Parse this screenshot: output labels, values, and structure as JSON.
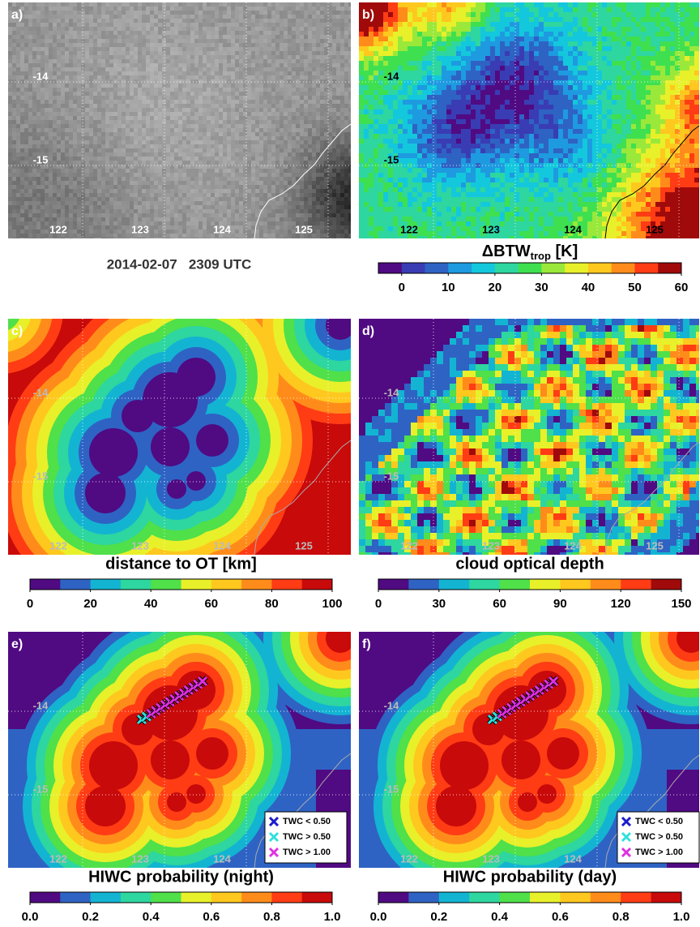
{
  "caption": "2014-02-07   2309 UTC",
  "panels": [
    {
      "label": "a)",
      "lon_labels": [
        122,
        123,
        124,
        125
      ],
      "lat_labels": [
        -14,
        -15
      ]
    },
    {
      "label": "b)",
      "lon_labels": [
        122,
        123,
        124,
        125
      ],
      "lat_labels": [
        -14,
        -15
      ],
      "colorbar": {
        "title": {
          "main": "ΔBTW",
          "sub": "trop",
          "unit": " [K]"
        },
        "lim": [
          -5,
          60
        ],
        "ticks": [
          0,
          10,
          20,
          30,
          40,
          50,
          60
        ],
        "colors": [
          "#500a82",
          "#3a3cb4",
          "#2e63c4",
          "#1e9ae0",
          "#13c8dc",
          "#2ed6a0",
          "#3ee050",
          "#9ae83a",
          "#e8f02a",
          "#ffc81e",
          "#ff8c1a",
          "#ff3c14",
          "#a00a0a"
        ]
      }
    },
    {
      "label": "c)",
      "lon_labels": [
        122,
        123,
        124,
        125
      ],
      "lat_labels": [
        -14,
        -15
      ],
      "colorbar": {
        "title": "distance to OT [km]",
        "lim": [
          0,
          100
        ],
        "ticks": [
          0,
          20,
          40,
          60,
          80,
          100
        ],
        "colors": [
          "#500a82",
          "#2e63c4",
          "#13b4d2",
          "#2ed6a0",
          "#4fe04a",
          "#e8f02a",
          "#ffc81e",
          "#ff8c1a",
          "#ff3c14",
          "#c80a0a"
        ]
      }
    },
    {
      "label": "d)",
      "lon_labels": [
        122,
        123,
        124,
        125
      ],
      "lat_labels": [
        -14,
        -15
      ],
      "colorbar": {
        "title": "cloud optical depth",
        "lim": [
          0,
          150
        ],
        "ticks": [
          0,
          30,
          60,
          90,
          120,
          150
        ],
        "colors": [
          "#500a82",
          "#2e63c4",
          "#13b4d2",
          "#2ed6a0",
          "#4fe04a",
          "#e8f02a",
          "#ffc81e",
          "#ff8c1a",
          "#ff3c14",
          "#a00a0a"
        ]
      }
    },
    {
      "label": "e)",
      "lon_labels": [
        122,
        123,
        124
      ],
      "lat_labels": [
        -14,
        -15
      ],
      "colorbar": {
        "title": "HIWC probability (night)",
        "lim": [
          0,
          1
        ],
        "ticks": [
          {
            "value": 0,
            "label": "0.0"
          },
          {
            "value": 0.2,
            "label": "0.2"
          },
          {
            "value": 0.4,
            "label": "0.4"
          },
          {
            "value": 0.6,
            "label": "0.6"
          },
          {
            "value": 0.8,
            "label": "0.8"
          },
          {
            "value": 1,
            "label": "1.0"
          }
        ],
        "colors": [
          "#500a82",
          "#2e63c4",
          "#13b4d2",
          "#2ed6a0",
          "#4fe04a",
          "#e8f02a",
          "#ffc81e",
          "#ff8c1a",
          "#ff3c14",
          "#c80a0a"
        ]
      },
      "legend": [
        {
          "name": "TWC < 0.50",
          "color": "#1c1ccc"
        },
        {
          "name": "TWC > 0.50",
          "color": "#30e0e0"
        },
        {
          "name": "TWC > 1.00",
          "color": "#e030e0"
        }
      ]
    },
    {
      "label": "f)",
      "lon_labels": [
        122,
        123,
        124
      ],
      "lat_labels": [
        -14,
        -15
      ],
      "colorbar": {
        "title": "HIWC probability (day)",
        "lim": [
          0,
          1
        ],
        "ticks": [
          {
            "value": 0,
            "label": "0.0"
          },
          {
            "value": 0.2,
            "label": "0.2"
          },
          {
            "value": 0.4,
            "label": "0.4"
          },
          {
            "value": 0.6,
            "label": "0.6"
          },
          {
            "value": 0.8,
            "label": "0.8"
          },
          {
            "value": 1,
            "label": "1.0"
          }
        ],
        "colors": [
          "#500a82",
          "#2e63c4",
          "#13b4d2",
          "#2ed6a0",
          "#4fe04a",
          "#e8f02a",
          "#ffc81e",
          "#ff8c1a",
          "#ff3c14",
          "#c80a0a"
        ]
      },
      "legend": [
        {
          "name": "TWC < 0.50",
          "color": "#1c1ccc"
        },
        {
          "name": "TWC > 0.50",
          "color": "#30e0e0"
        },
        {
          "name": "TWC > 1.00",
          "color": "#e030e0"
        }
      ]
    }
  ]
}
